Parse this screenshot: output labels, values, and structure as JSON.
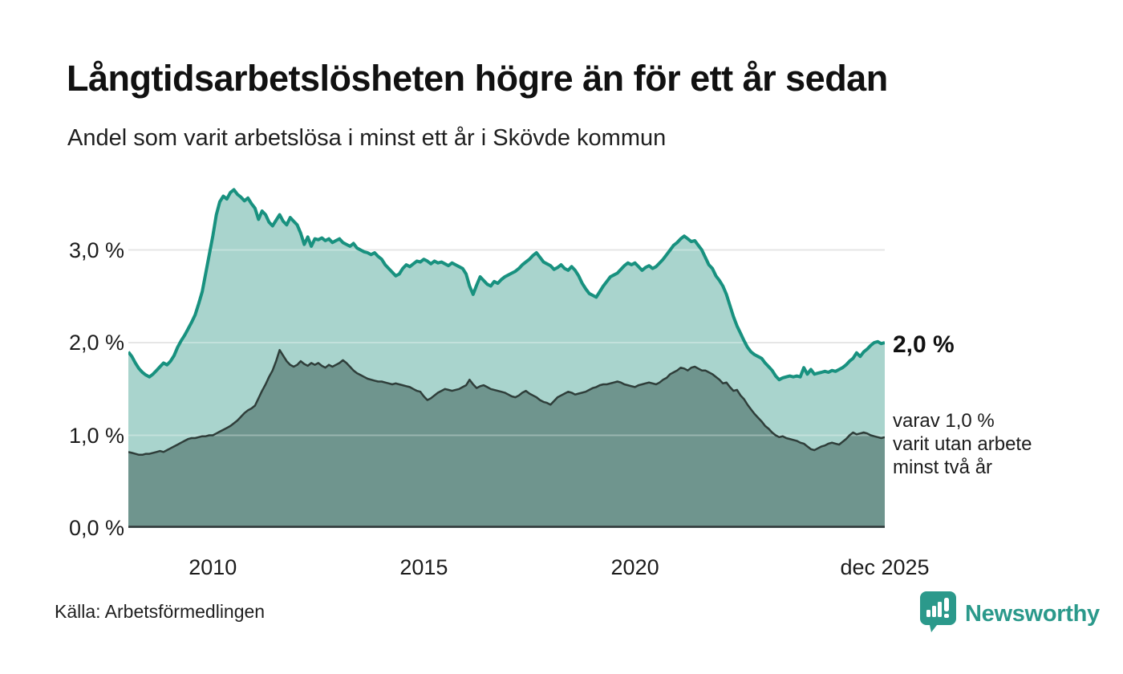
{
  "header": {
    "title": "Långtidsarbetslösheten högre än för ett år sedan",
    "subtitle": "Andel som varit arbetslösa i minst ett år i Skövde kommun"
  },
  "chart_data": {
    "type": "area",
    "title": "Långtidsarbetslösheten högre än för ett år sedan",
    "subtitle": "Andel som varit arbetslösa i minst ett år i Skövde kommun",
    "unit": "%",
    "x_start": "2008-01",
    "x_end": "2025-12",
    "x_frequency": "monthly",
    "ylim": [
      0,
      3.75
    ],
    "grid_values": [
      1,
      2,
      3
    ],
    "grid_on": true,
    "colors": {
      "grid": "#dcdcdc",
      "axis": "#32393b"
    },
    "y_ticks": [
      {
        "value": 3,
        "label": "3,0 %"
      },
      {
        "value": 2,
        "label": "2,0 %"
      },
      {
        "value": 1,
        "label": "1,0 %"
      },
      {
        "value": 0,
        "label": "0,0 %"
      }
    ],
    "x_ticks": [
      {
        "label": "2010",
        "month_index": 24
      },
      {
        "label": "2015",
        "month_index": 84
      },
      {
        "label": "2020",
        "month_index": 144
      },
      {
        "label": "dec 2025",
        "month_index": 215
      }
    ],
    "annotations": {
      "end_label_total": "2,0 %",
      "sub_lines": [
        "varav 1,0 %",
        "varit utan arbete",
        "minst två år"
      ]
    },
    "series": [
      {
        "name": "arbetslösa minst ett år",
        "color": "#18917f",
        "fill": "#a9d4cd",
        "line_width": 4,
        "values": [
          1.9,
          1.85,
          1.78,
          1.72,
          1.68,
          1.65,
          1.63,
          1.66,
          1.7,
          1.74,
          1.78,
          1.76,
          1.8,
          1.86,
          1.95,
          2.02,
          2.08,
          2.15,
          2.22,
          2.3,
          2.42,
          2.55,
          2.75,
          2.95,
          3.15,
          3.38,
          3.52,
          3.58,
          3.55,
          3.62,
          3.65,
          3.6,
          3.57,
          3.53,
          3.56,
          3.5,
          3.45,
          3.33,
          3.42,
          3.38,
          3.3,
          3.26,
          3.32,
          3.38,
          3.31,
          3.27,
          3.35,
          3.31,
          3.27,
          3.18,
          3.06,
          3.14,
          3.04,
          3.12,
          3.11,
          3.13,
          3.1,
          3.12,
          3.08,
          3.1,
          3.12,
          3.08,
          3.06,
          3.04,
          3.07,
          3.02,
          3.0,
          2.98,
          2.97,
          2.95,
          2.97,
          2.93,
          2.9,
          2.84,
          2.8,
          2.76,
          2.72,
          2.74,
          2.8,
          2.84,
          2.82,
          2.85,
          2.88,
          2.87,
          2.9,
          2.88,
          2.85,
          2.88,
          2.86,
          2.87,
          2.85,
          2.83,
          2.86,
          2.84,
          2.82,
          2.8,
          2.74,
          2.61,
          2.52,
          2.62,
          2.71,
          2.67,
          2.63,
          2.61,
          2.66,
          2.64,
          2.68,
          2.71,
          2.73,
          2.75,
          2.77,
          2.8,
          2.84,
          2.87,
          2.9,
          2.94,
          2.97,
          2.92,
          2.87,
          2.85,
          2.83,
          2.79,
          2.81,
          2.84,
          2.8,
          2.78,
          2.82,
          2.78,
          2.72,
          2.64,
          2.58,
          2.53,
          2.51,
          2.49,
          2.55,
          2.61,
          2.66,
          2.71,
          2.73,
          2.75,
          2.79,
          2.83,
          2.86,
          2.84,
          2.86,
          2.82,
          2.78,
          2.81,
          2.83,
          2.8,
          2.82,
          2.86,
          2.9,
          2.95,
          3.0,
          3.05,
          3.08,
          3.12,
          3.15,
          3.12,
          3.09,
          3.1,
          3.05,
          3.0,
          2.92,
          2.84,
          2.8,
          2.72,
          2.67,
          2.61,
          2.52,
          2.4,
          2.28,
          2.18,
          2.1,
          2.02,
          1.95,
          1.9,
          1.87,
          1.85,
          1.83,
          1.78,
          1.74,
          1.7,
          1.64,
          1.6,
          1.62,
          1.63,
          1.64,
          1.63,
          1.64,
          1.63,
          1.73,
          1.66,
          1.71,
          1.66,
          1.67,
          1.68,
          1.69,
          1.68,
          1.7,
          1.69,
          1.71,
          1.73,
          1.76,
          1.8,
          1.83,
          1.89,
          1.85,
          1.9,
          1.93,
          1.97,
          2.0,
          2.01,
          1.99,
          2.0
        ]
      },
      {
        "name": "varav utan arbete minst två år",
        "color": "#2f3e3a",
        "fill": "#6f958e",
        "line_width": 2.5,
        "values": [
          0.82,
          0.81,
          0.8,
          0.79,
          0.79,
          0.8,
          0.8,
          0.81,
          0.82,
          0.83,
          0.82,
          0.84,
          0.86,
          0.88,
          0.9,
          0.92,
          0.94,
          0.96,
          0.97,
          0.97,
          0.98,
          0.99,
          0.99,
          1.0,
          1.0,
          1.02,
          1.04,
          1.06,
          1.08,
          1.1,
          1.13,
          1.16,
          1.2,
          1.24,
          1.27,
          1.29,
          1.32,
          1.4,
          1.48,
          1.55,
          1.63,
          1.7,
          1.8,
          1.92,
          1.86,
          1.8,
          1.76,
          1.74,
          1.76,
          1.8,
          1.77,
          1.75,
          1.78,
          1.76,
          1.78,
          1.75,
          1.73,
          1.76,
          1.74,
          1.76,
          1.78,
          1.81,
          1.78,
          1.74,
          1.7,
          1.67,
          1.65,
          1.63,
          1.61,
          1.6,
          1.59,
          1.58,
          1.58,
          1.57,
          1.56,
          1.55,
          1.56,
          1.55,
          1.54,
          1.53,
          1.52,
          1.5,
          1.48,
          1.47,
          1.42,
          1.38,
          1.4,
          1.43,
          1.46,
          1.48,
          1.5,
          1.49,
          1.48,
          1.49,
          1.5,
          1.52,
          1.54,
          1.6,
          1.55,
          1.51,
          1.53,
          1.54,
          1.52,
          1.5,
          1.49,
          1.48,
          1.47,
          1.46,
          1.44,
          1.42,
          1.41,
          1.43,
          1.46,
          1.48,
          1.45,
          1.43,
          1.41,
          1.38,
          1.36,
          1.35,
          1.33,
          1.37,
          1.41,
          1.43,
          1.45,
          1.47,
          1.46,
          1.44,
          1.45,
          1.46,
          1.47,
          1.49,
          1.51,
          1.52,
          1.54,
          1.55,
          1.55,
          1.56,
          1.57,
          1.58,
          1.57,
          1.55,
          1.54,
          1.53,
          1.52,
          1.54,
          1.55,
          1.56,
          1.57,
          1.56,
          1.55,
          1.57,
          1.6,
          1.62,
          1.66,
          1.68,
          1.7,
          1.73,
          1.72,
          1.7,
          1.73,
          1.74,
          1.72,
          1.7,
          1.7,
          1.68,
          1.66,
          1.63,
          1.6,
          1.56,
          1.57,
          1.52,
          1.48,
          1.49,
          1.43,
          1.39,
          1.33,
          1.28,
          1.23,
          1.19,
          1.15,
          1.1,
          1.07,
          1.03,
          1.0,
          0.98,
          0.99,
          0.97,
          0.96,
          0.95,
          0.94,
          0.92,
          0.91,
          0.88,
          0.85,
          0.84,
          0.86,
          0.88,
          0.89,
          0.91,
          0.92,
          0.91,
          0.9,
          0.93,
          0.96,
          1.0,
          1.03,
          1.01,
          1.02,
          1.03,
          1.02,
          1.0,
          0.99,
          0.98,
          0.97,
          0.98
        ]
      }
    ]
  },
  "footer": {
    "source": "Källa: Arbetsförmedlingen",
    "brand": "Newsworthy"
  }
}
